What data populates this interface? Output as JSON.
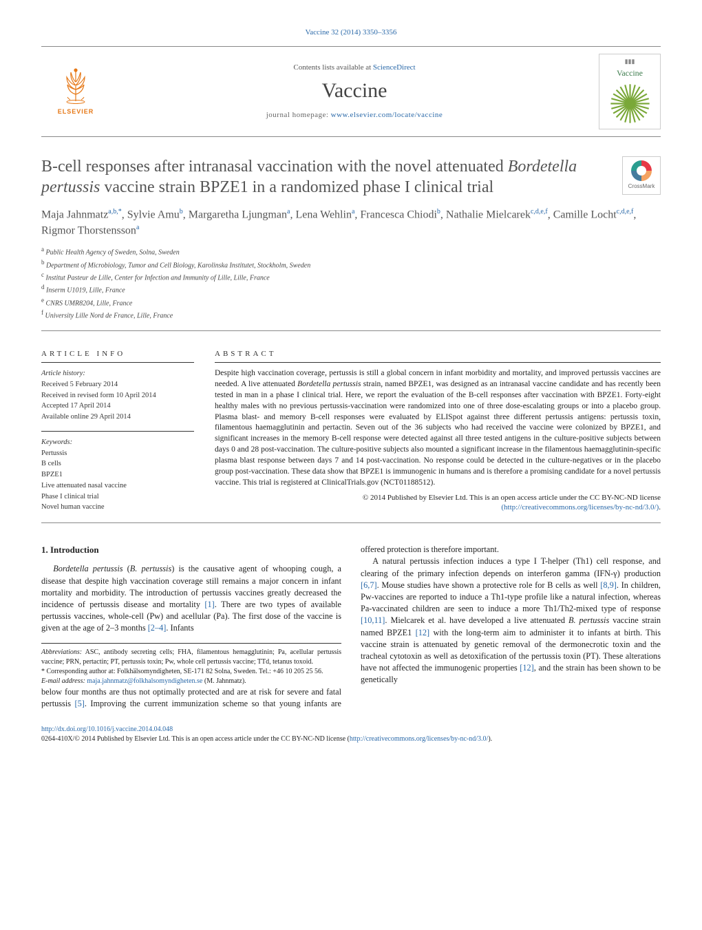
{
  "citation": "Vaccine 32 (2014) 3350–3356",
  "header": {
    "contents_prefix": "Contents lists available at ",
    "contents_link": "ScienceDirect",
    "journal": "Vaccine",
    "homepage_prefix": "journal homepage: ",
    "homepage_link": "www.elsevier.com/locate/vaccine",
    "publisher_name": "ELSEVIER",
    "cover_label": "Vaccine"
  },
  "crossmark_label": "CrossMark",
  "title_parts": {
    "pre": "B-cell responses after intranasal vaccination with the novel attenuated ",
    "italic": "Bordetella pertussis",
    "post": " vaccine strain BPZE1 in a randomized phase I clinical trial"
  },
  "authors_html": "Maja Jahnmatz<sup>a,b,*</sup>, Sylvie Amu<sup>b</sup>, Margaretha Ljungman<sup>a</sup>, Lena Wehlin<sup>a</sup>, Francesca Chiodi<sup>b</sup>, Nathalie Mielcarek<sup>c,d,e,f</sup>, Camille Locht<sup>c,d,e,f</sup>, Rigmor Thorstensson<sup>a</sup>",
  "affiliations": [
    {
      "sup": "a",
      "text": "Public Health Agency of Sweden, Solna, Sweden"
    },
    {
      "sup": "b",
      "text": "Department of Microbiology, Tumor and Cell Biology, Karolinska Institutet, Stockholm, Sweden"
    },
    {
      "sup": "c",
      "text": "Institut Pasteur de Lille, Center for Infection and Immunity of Lille, Lille, France"
    },
    {
      "sup": "d",
      "text": "Inserm U1019, Lille, France"
    },
    {
      "sup": "e",
      "text": "CNRS UMR8204, Lille, France"
    },
    {
      "sup": "f",
      "text": "University Lille Nord de France, Lille, France"
    }
  ],
  "article_info": {
    "head": "ARTICLE INFO",
    "history_label": "Article history:",
    "dates": [
      "Received 5 February 2014",
      "Received in revised form 10 April 2014",
      "Accepted 17 April 2014",
      "Available online 29 April 2014"
    ],
    "keywords_label": "Keywords:",
    "keywords": [
      "Pertussis",
      "B cells",
      "BPZE1",
      "Live attenuated nasal vaccine",
      "Phase I clinical trial",
      "Novel human vaccine"
    ]
  },
  "abstract": {
    "head": "ABSTRACT",
    "body_pre": "Despite high vaccination coverage, pertussis is still a global concern in infant morbidity and mortality, and improved pertussis vaccines are needed. A live attenuated ",
    "body_italic": "Bordetella pertussis",
    "body_post": " strain, named BPZE1, was designed as an intranasal vaccine candidate and has recently been tested in man in a phase I clinical trial. Here, we report the evaluation of the B-cell responses after vaccination with BPZE1. Forty-eight healthy males with no previous pertussis-vaccination were randomized into one of three dose-escalating groups or into a placebo group. Plasma blast- and memory B-cell responses were evaluated by ELISpot against three different pertussis antigens: pertussis toxin, filamentous haemagglutinin and pertactin. Seven out of the 36 subjects who had received the vaccine were colonized by BPZE1, and significant increases in the memory B-cell response were detected against all three tested antigens in the culture-positive subjects between days 0 and 28 post-vaccination. The culture-positive subjects also mounted a significant increase in the filamentous haemagglutinin-specific plasma blast response between days 7 and 14 post-vaccination. No response could be detected in the culture-negatives or in the placebo group post-vaccination. These data show that BPZE1 is immunogenic in humans and is therefore a promising candidate for a novel pertussis vaccine. This trial is registered at ClinicalTrials.gov (NCT01188512).",
    "copyright_line1": "© 2014 Published by Elsevier Ltd. This is an open access article under the CC BY-NC-ND license",
    "copyright_link": "(http://creativecommons.org/licenses/by-nc-nd/3.0/)"
  },
  "intro": {
    "heading": "1. Introduction",
    "p1_pre": "Bordetella pertussis",
    "p1_mid": " (B. pertussis",
    "p1_post": ") is the causative agent of whooping cough, a disease that despite high vaccination coverage still remains a major concern in infant mortality and morbidity. The introduction of pertussis vaccines greatly decreased the incidence of pertussis disease and mortality ",
    "ref1": "[1]",
    "p1_tail": ". There are two types of available pertussis vaccines, whole-cell (Pw) and acellular (Pa). The first dose of the vaccine is given at the age of 2–3 months ",
    "ref2": "[2–4]",
    "p1_end": ". Infants",
    "p2a": "below four months are thus not optimally protected and are at risk for severe and fatal pertussis ",
    "ref5": "[5]",
    "p2b": ". Improving the current immunization scheme so that young infants are offered protection is therefore important.",
    "p3a": "A natural pertussis infection induces a type I T-helper (Th1) cell response, and clearing of the primary infection depends on interferon gamma (IFN-γ) production ",
    "ref67": "[6,7]",
    "p3b": ". Mouse studies have shown a protective role for B cells as well ",
    "ref89": "[8,9]",
    "p3c": ". In children, Pw-vaccines are reported to induce a Th1-type profile like a natural infection, whereas Pa-vaccinated children are seen to induce a more Th1/Th2-mixed type of response ",
    "ref1011": "[10,11]",
    "p3d": ". Mielcarek et al. have developed a live attenuated ",
    "p3e_italic": "B. pertussis",
    "p3f": " vaccine strain named BPZE1 ",
    "ref12a": "[12]",
    "p3g": " with the long-term aim to administer it to infants at birth. This vaccine strain is attenuated by genetic removal of the dermonecrotic toxin and the tracheal cytotoxin as well as detoxification of the pertussis toxin (PT). These alterations have not affected the immunogenic properties ",
    "ref12b": "[12]",
    "p3h": ", and the strain has been shown to be genetically"
  },
  "footnotes": {
    "abbrev_label": "Abbreviations:",
    "abbrev_text": " ASC, antibody secreting cells; FHA, filamentous hemagglutinin; Pa, acellular pertussis vaccine; PRN, pertactin; PT, pertussis toxin; Pw, whole cell pertussis vaccine; TTd, tetanus toxoid.",
    "corr_label": "* Corresponding author at:",
    "corr_text": " Folkhälsomyndigheten, SE-171 82 Solna, Sweden. Tel.: +46 10 205 25 56.",
    "email_label": "E-mail address:",
    "email_link": "maja.jahnmatz@folkhalsomyndigheten.se",
    "email_tail": " (M. Jahnmatz)."
  },
  "bottom": {
    "doi": "http://dx.doi.org/10.1016/j.vaccine.2014.04.048",
    "issn_line_pre": "0264-410X/© 2014 Published by Elsevier Ltd. This is an open access article under the CC BY-NC-ND license (",
    "issn_link": "http://creativecommons.org/licenses/by-nc-nd/3.0/",
    "issn_line_post": ")."
  },
  "colors": {
    "link": "#2968a8",
    "elsevier": "#e67817",
    "text": "#222222",
    "heading_gray": "#555555"
  }
}
